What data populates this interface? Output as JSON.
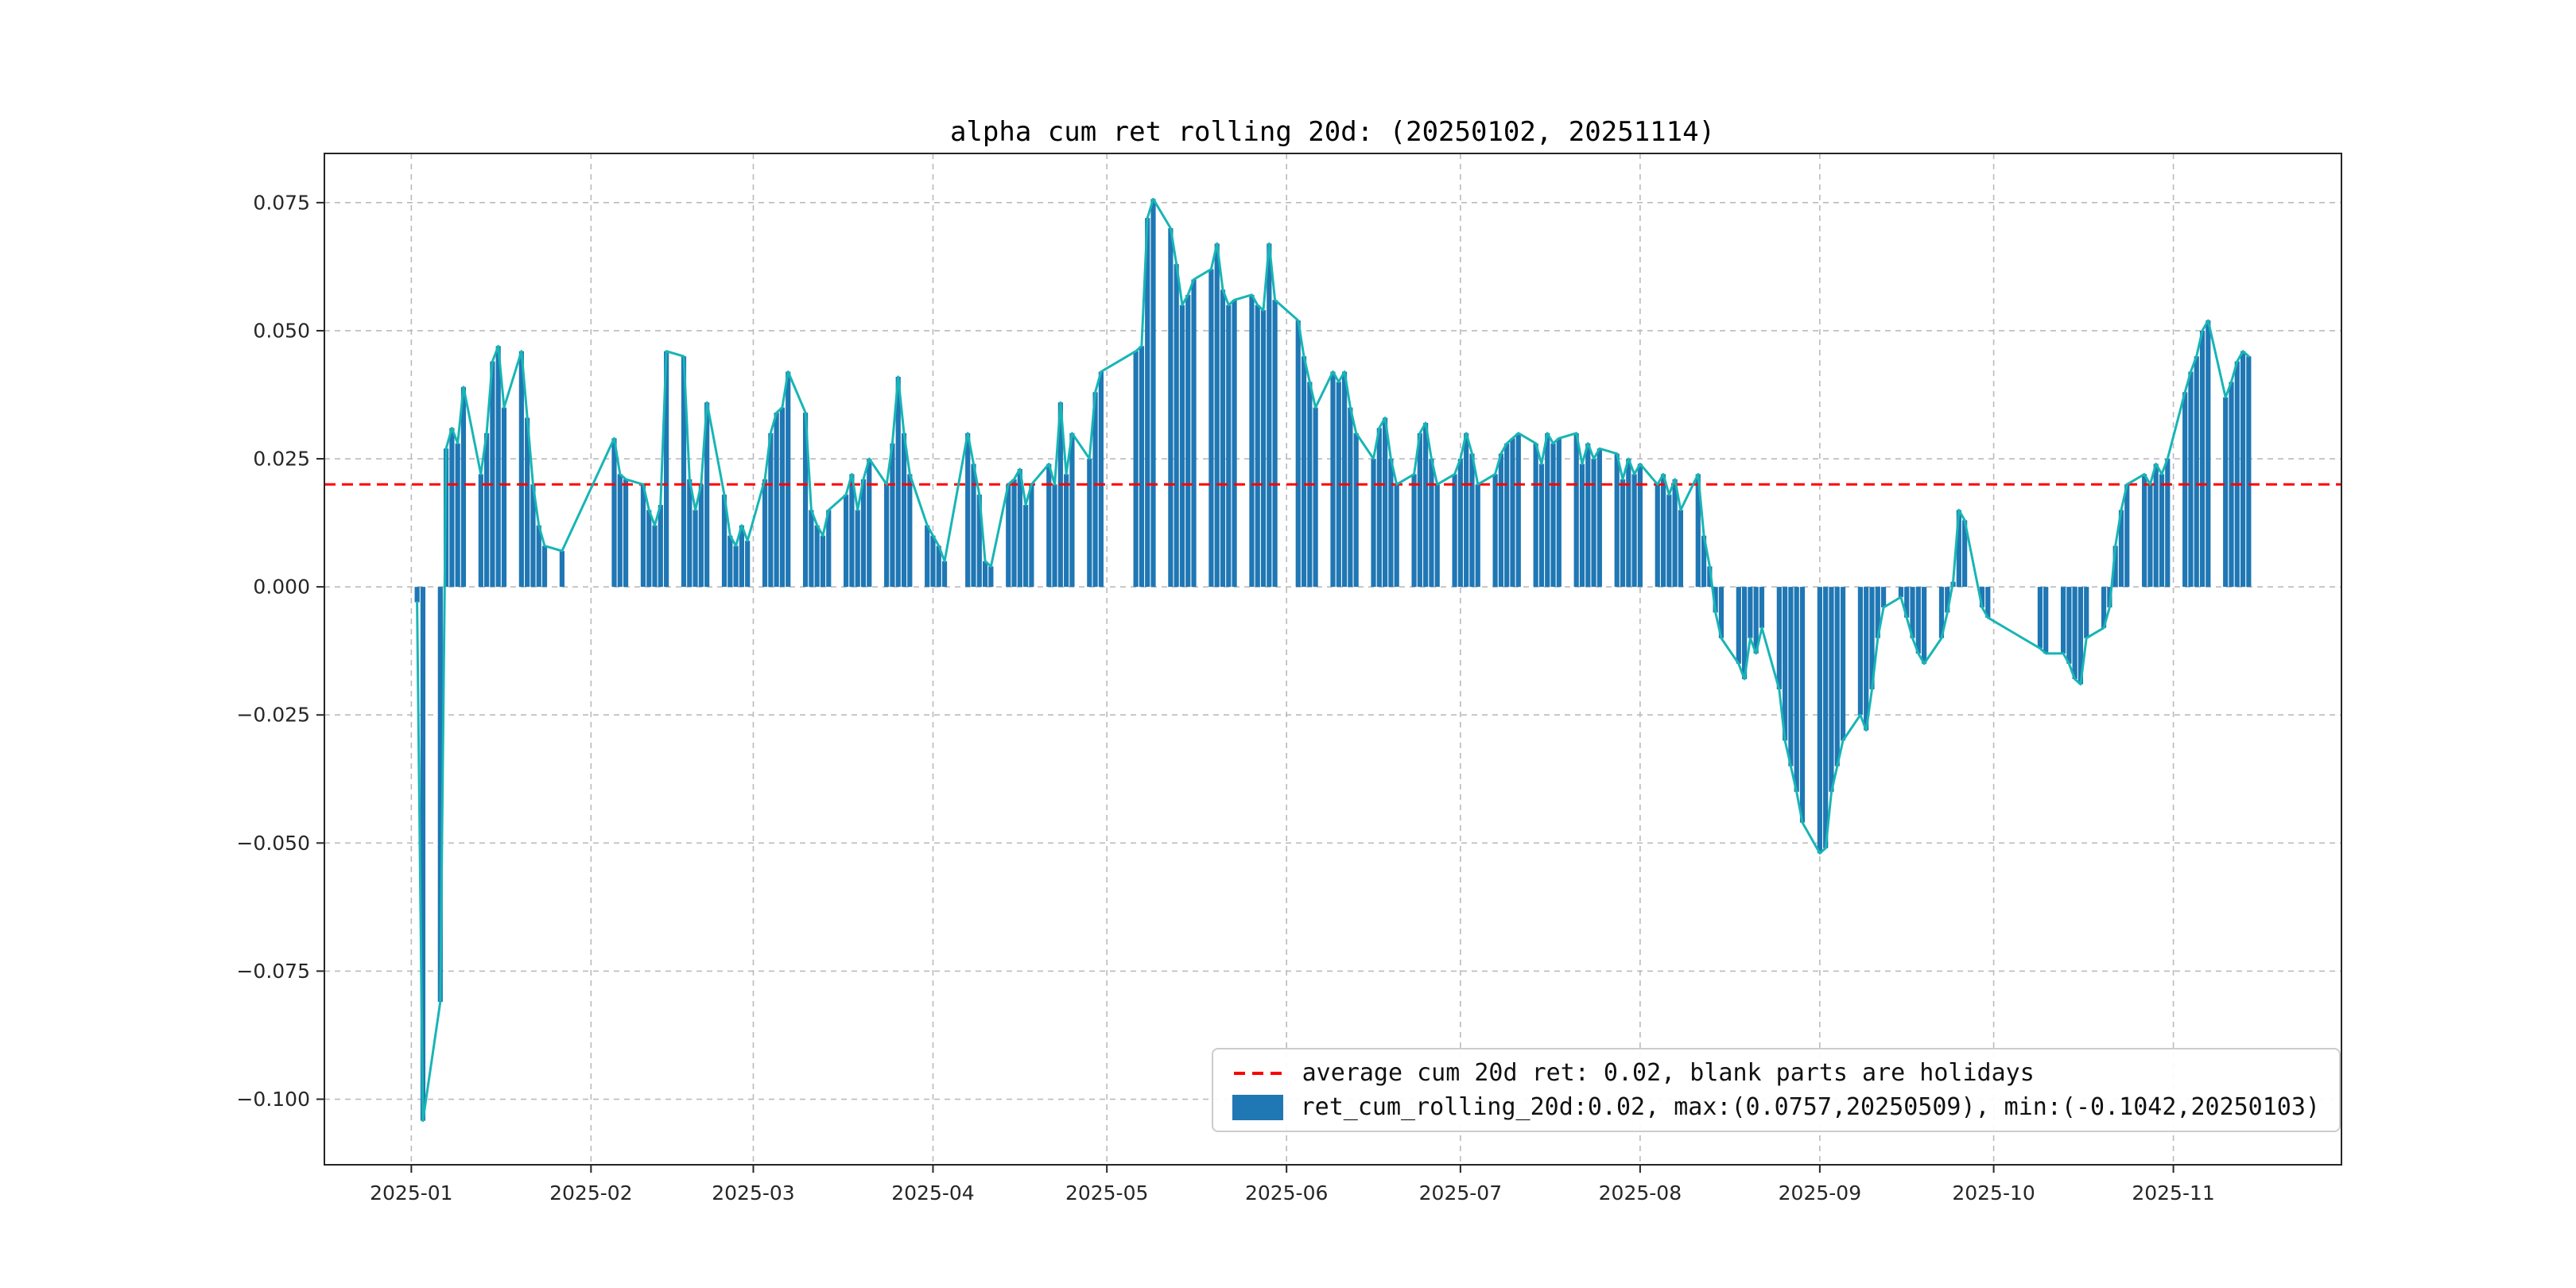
{
  "figure": {
    "title": "alpha cum ret rolling 20d: (20250102, 20251114)"
  },
  "legend": {
    "avg_label": "average cum 20d ret: 0.02, blank parts are holidays",
    "series_label": "ret_cum_rolling_20d:0.02, max:(0.0757,20250509), min:(-0.1042,20250103)"
  },
  "chart_data": {
    "type": "bar",
    "title": "alpha cum ret rolling 20d: (20250102, 20251114)",
    "xlabel": "",
    "ylabel": "",
    "date_range": [
      "20250102",
      "20251114"
    ],
    "average_line": 0.02,
    "max": {
      "value": 0.0757,
      "date": "20250509"
    },
    "min": {
      "value": -0.1042,
      "date": "20250103"
    },
    "grid": true,
    "legend_position": "lower right",
    "x_axis_range": [
      "2024-12-17",
      "2025-11-30"
    ],
    "y_axis_range": [
      -0.1128,
      0.0846
    ],
    "x_ticks": [
      "2025-01-01",
      "2025-02-01",
      "2025-03-01",
      "2025-04-01",
      "2025-05-01",
      "2025-06-01",
      "2025-07-01",
      "2025-08-01",
      "2025-09-01",
      "2025-10-01",
      "2025-11-01"
    ],
    "x_tick_labels": [
      "2025-01",
      "2025-02",
      "2025-03",
      "2025-04",
      "2025-05",
      "2025-06",
      "2025-07",
      "2025-08",
      "2025-09",
      "2025-10",
      "2025-11"
    ],
    "y_ticks": [
      0.075,
      0.05,
      0.025,
      0.0,
      -0.025,
      -0.05,
      -0.075,
      -0.1
    ],
    "y_tick_labels": [
      "0.075",
      "0.050",
      "0.025",
      "0.000",
      "−0.025",
      "−0.050",
      "−0.075",
      "−0.100"
    ],
    "colors": {
      "bar": "#1f77b4",
      "line": "#18b5b5",
      "avg_line": "#ff0000",
      "grid": "#bbbbbb",
      "spine": "#262626"
    },
    "series": [
      {
        "name": "ret_cum_rolling_20d",
        "render": [
          "bar",
          "line"
        ],
        "dates": [
          "2025-01-02",
          "2025-01-03",
          "2025-01-06",
          "2025-01-07",
          "2025-01-08",
          "2025-01-09",
          "2025-01-10",
          "2025-01-13",
          "2025-01-14",
          "2025-01-15",
          "2025-01-16",
          "2025-01-17",
          "2025-01-20",
          "2025-01-21",
          "2025-01-22",
          "2025-01-23",
          "2025-01-24",
          "2025-01-27",
          "2025-02-05",
          "2025-02-06",
          "2025-02-07",
          "2025-02-10",
          "2025-02-11",
          "2025-02-12",
          "2025-02-13",
          "2025-02-14",
          "2025-02-17",
          "2025-02-18",
          "2025-02-19",
          "2025-02-20",
          "2025-02-21",
          "2025-02-24",
          "2025-02-25",
          "2025-02-26",
          "2025-02-27",
          "2025-02-28",
          "2025-03-03",
          "2025-03-04",
          "2025-03-05",
          "2025-03-06",
          "2025-03-07",
          "2025-03-10",
          "2025-03-11",
          "2025-03-12",
          "2025-03-13",
          "2025-03-14",
          "2025-03-17",
          "2025-03-18",
          "2025-03-19",
          "2025-03-20",
          "2025-03-21",
          "2025-03-24",
          "2025-03-25",
          "2025-03-26",
          "2025-03-27",
          "2025-03-28",
          "2025-03-31",
          "2025-04-01",
          "2025-04-02",
          "2025-04-03",
          "2025-04-07",
          "2025-04-08",
          "2025-04-09",
          "2025-04-10",
          "2025-04-11",
          "2025-04-14",
          "2025-04-15",
          "2025-04-16",
          "2025-04-17",
          "2025-04-18",
          "2025-04-21",
          "2025-04-22",
          "2025-04-23",
          "2025-04-24",
          "2025-04-25",
          "2025-04-28",
          "2025-04-29",
          "2025-04-30",
          "2025-05-06",
          "2025-05-07",
          "2025-05-08",
          "2025-05-09",
          "2025-05-12",
          "2025-05-13",
          "2025-05-14",
          "2025-05-15",
          "2025-05-16",
          "2025-05-19",
          "2025-05-20",
          "2025-05-21",
          "2025-05-22",
          "2025-05-23",
          "2025-05-26",
          "2025-05-27",
          "2025-05-28",
          "2025-05-29",
          "2025-05-30",
          "2025-06-03",
          "2025-06-04",
          "2025-06-05",
          "2025-06-06",
          "2025-06-09",
          "2025-06-10",
          "2025-06-11",
          "2025-06-12",
          "2025-06-13",
          "2025-06-16",
          "2025-06-17",
          "2025-06-18",
          "2025-06-19",
          "2025-06-20",
          "2025-06-23",
          "2025-06-24",
          "2025-06-25",
          "2025-06-26",
          "2025-06-27",
          "2025-06-30",
          "2025-07-01",
          "2025-07-02",
          "2025-07-03",
          "2025-07-04",
          "2025-07-07",
          "2025-07-08",
          "2025-07-09",
          "2025-07-10",
          "2025-07-11",
          "2025-07-14",
          "2025-07-15",
          "2025-07-16",
          "2025-07-17",
          "2025-07-18",
          "2025-07-21",
          "2025-07-22",
          "2025-07-23",
          "2025-07-24",
          "2025-07-25",
          "2025-07-28",
          "2025-07-29",
          "2025-07-30",
          "2025-07-31",
          "2025-08-01",
          "2025-08-04",
          "2025-08-05",
          "2025-08-06",
          "2025-08-07",
          "2025-08-08",
          "2025-08-11",
          "2025-08-12",
          "2025-08-13",
          "2025-08-14",
          "2025-08-15",
          "2025-08-18",
          "2025-08-19",
          "2025-08-20",
          "2025-08-21",
          "2025-08-22",
          "2025-08-25",
          "2025-08-26",
          "2025-08-27",
          "2025-08-28",
          "2025-08-29",
          "2025-09-01",
          "2025-09-02",
          "2025-09-03",
          "2025-09-04",
          "2025-09-05",
          "2025-09-08",
          "2025-09-09",
          "2025-09-10",
          "2025-09-11",
          "2025-09-12",
          "2025-09-15",
          "2025-09-16",
          "2025-09-17",
          "2025-09-18",
          "2025-09-19",
          "2025-09-22",
          "2025-09-23",
          "2025-09-24",
          "2025-09-25",
          "2025-09-26",
          "2025-09-29",
          "2025-09-30",
          "2025-10-09",
          "2025-10-10",
          "2025-10-13",
          "2025-10-14",
          "2025-10-15",
          "2025-10-16",
          "2025-10-17",
          "2025-10-20",
          "2025-10-21",
          "2025-10-22",
          "2025-10-23",
          "2025-10-24",
          "2025-10-27",
          "2025-10-28",
          "2025-10-29",
          "2025-10-30",
          "2025-10-31",
          "2025-11-03",
          "2025-11-04",
          "2025-11-05",
          "2025-11-06",
          "2025-11-07",
          "2025-11-10",
          "2025-11-11",
          "2025-11-12",
          "2025-11-13",
          "2025-11-14"
        ],
        "values": [
          -0.003,
          -0.1042,
          -0.081,
          0.027,
          0.031,
          0.028,
          0.039,
          0.022,
          0.03,
          0.044,
          0.047,
          0.035,
          0.046,
          0.033,
          0.02,
          0.012,
          0.008,
          0.007,
          0.029,
          0.022,
          0.021,
          0.02,
          0.015,
          0.012,
          0.016,
          0.046,
          0.045,
          0.021,
          0.015,
          0.02,
          0.036,
          0.018,
          0.01,
          0.008,
          0.012,
          0.009,
          0.021,
          0.03,
          0.034,
          0.035,
          0.042,
          0.034,
          0.015,
          0.012,
          0.01,
          0.015,
          0.018,
          0.022,
          0.015,
          0.021,
          0.025,
          0.02,
          0.028,
          0.041,
          0.03,
          0.022,
          0.012,
          0.01,
          0.008,
          0.005,
          0.03,
          0.024,
          0.018,
          0.005,
          0.004,
          0.02,
          0.021,
          0.023,
          0.016,
          0.02,
          0.024,
          0.02,
          0.036,
          0.022,
          0.03,
          0.025,
          0.038,
          0.042,
          0.046,
          0.047,
          0.072,
          0.0757,
          0.07,
          0.063,
          0.055,
          0.057,
          0.06,
          0.062,
          0.067,
          0.058,
          0.055,
          0.056,
          0.057,
          0.055,
          0.054,
          0.067,
          0.056,
          0.052,
          0.045,
          0.04,
          0.035,
          0.042,
          0.04,
          0.042,
          0.035,
          0.03,
          0.025,
          0.031,
          0.033,
          0.025,
          0.02,
          0.022,
          0.03,
          0.032,
          0.025,
          0.02,
          0.022,
          0.025,
          0.03,
          0.026,
          0.02,
          0.022,
          0.026,
          0.028,
          0.029,
          0.03,
          0.028,
          0.024,
          0.03,
          0.028,
          0.029,
          0.03,
          0.024,
          0.028,
          0.025,
          0.027,
          0.026,
          0.021,
          0.025,
          0.022,
          0.024,
          0.02,
          0.022,
          0.018,
          0.021,
          0.015,
          0.022,
          0.01,
          0.004,
          -0.005,
          -0.01,
          -0.015,
          -0.018,
          -0.01,
          -0.013,
          -0.008,
          -0.02,
          -0.03,
          -0.035,
          -0.04,
          -0.046,
          -0.052,
          -0.051,
          -0.04,
          -0.035,
          -0.03,
          -0.025,
          -0.028,
          -0.02,
          -0.01,
          -0.004,
          -0.002,
          -0.006,
          -0.01,
          -0.013,
          -0.015,
          -0.01,
          -0.005,
          0.001,
          0.015,
          0.013,
          -0.004,
          -0.006,
          -0.012,
          -0.013,
          -0.013,
          -0.015,
          -0.018,
          -0.019,
          -0.01,
          -0.008,
          -0.004,
          0.008,
          0.015,
          0.02,
          0.022,
          0.02,
          0.024,
          0.022,
          0.025,
          0.038,
          0.042,
          0.045,
          0.05,
          0.052,
          0.037,
          0.04,
          0.044,
          0.046,
          0.045
        ]
      }
    ]
  }
}
